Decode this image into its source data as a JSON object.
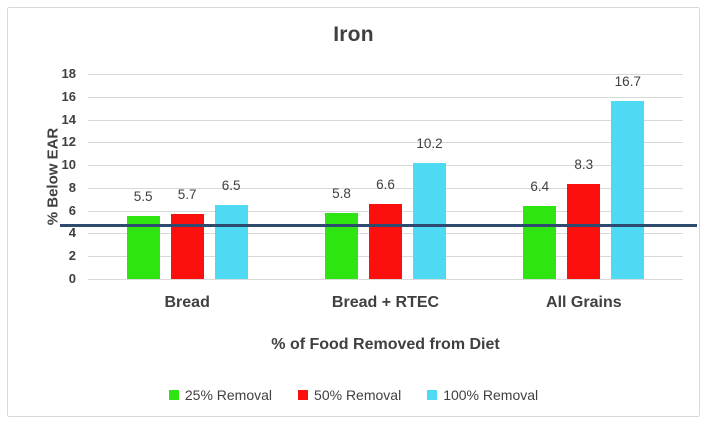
{
  "chart_data": {
    "type": "bar",
    "title": "Iron",
    "categories": [
      "Bread",
      "Bread + RTEC",
      "All Grains"
    ],
    "series": [
      {
        "name": "25% Removal",
        "color": "#2ee512",
        "values": [
          5.5,
          5.8,
          6.4
        ]
      },
      {
        "name": "50% Removal",
        "color": "#fb100d",
        "values": [
          5.7,
          6.6,
          8.3
        ]
      },
      {
        "name": "100% Removal",
        "color": "#4edaf2",
        "values": [
          6.5,
          10.2,
          16.7
        ]
      }
    ],
    "xlabel": "% of Food Removed from Diet",
    "ylabel": "% Below EAR",
    "ylim": [
      0,
      18
    ],
    "yticks": [
      0,
      2,
      4,
      6,
      8,
      10,
      12,
      14,
      16,
      18
    ],
    "grid": true,
    "legend_position": "bottom",
    "value_decimals": 1,
    "reference_line": {
      "value": 4.7,
      "color": "#2f4a6f"
    }
  }
}
